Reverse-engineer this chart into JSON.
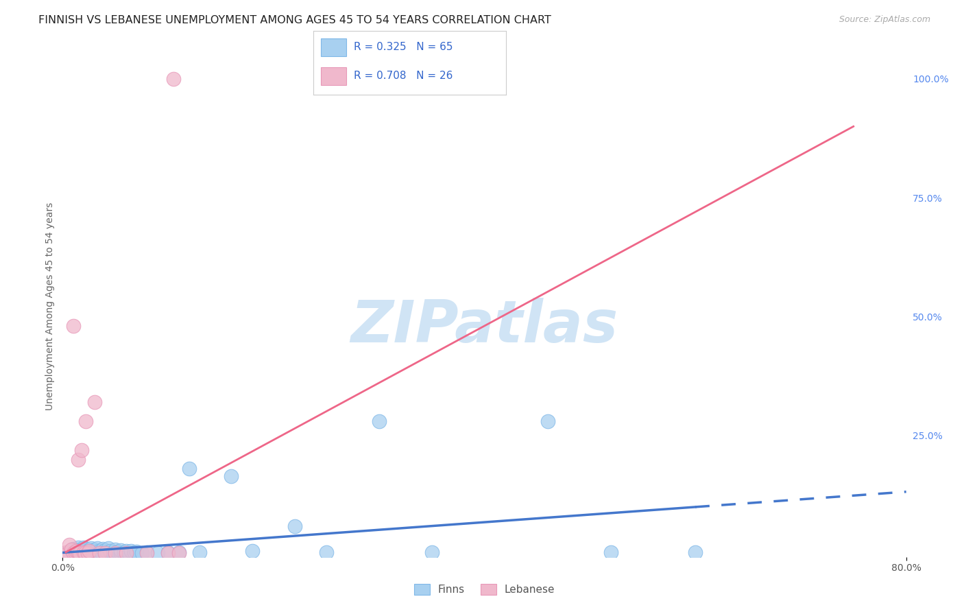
{
  "title": "FINNISH VS LEBANESE UNEMPLOYMENT AMONG AGES 45 TO 54 YEARS CORRELATION CHART",
  "source": "Source: ZipAtlas.com",
  "ylabel": "Unemployment Among Ages 45 to 54 years",
  "xlim": [
    0.0,
    0.8
  ],
  "ylim": [
    -0.005,
    1.05
  ],
  "x_tick_labels": [
    "0.0%",
    "80.0%"
  ],
  "y_ticks_right": [
    0.0,
    0.25,
    0.5,
    0.75,
    1.0
  ],
  "y_tick_labels_right": [
    "",
    "25.0%",
    "50.0%",
    "75.0%",
    "100.0%"
  ],
  "finns_R": 0.325,
  "finns_N": 65,
  "lebanese_R": 0.708,
  "lebanese_N": 26,
  "finns_color": "#a8d0f0",
  "finns_edge_color": "#80b8e8",
  "lebanese_color": "#f0b8cc",
  "lebanese_edge_color": "#e898b8",
  "finns_line_color": "#4477cc",
  "lebanese_line_color": "#ee6688",
  "background_color": "#ffffff",
  "watermark": "ZIPatlas",
  "watermark_color": "#d0e4f5",
  "grid_color": "#e0e0e0",
  "title_fontsize": 11.5,
  "axis_label_fontsize": 10,
  "tick_fontsize": 10,
  "finns_scatter_x": [
    0.005,
    0.008,
    0.01,
    0.01,
    0.012,
    0.013,
    0.014,
    0.015,
    0.015,
    0.016,
    0.018,
    0.018,
    0.02,
    0.02,
    0.02,
    0.022,
    0.022,
    0.024,
    0.025,
    0.025,
    0.026,
    0.027,
    0.028,
    0.03,
    0.03,
    0.032,
    0.033,
    0.035,
    0.035,
    0.037,
    0.038,
    0.04,
    0.04,
    0.042,
    0.043,
    0.045,
    0.045,
    0.048,
    0.05,
    0.05,
    0.052,
    0.055,
    0.055,
    0.058,
    0.06,
    0.063,
    0.065,
    0.068,
    0.07,
    0.075,
    0.08,
    0.09,
    0.1,
    0.11,
    0.12,
    0.13,
    0.16,
    0.18,
    0.22,
    0.25,
    0.3,
    0.35,
    0.46,
    0.52,
    0.6
  ],
  "finns_scatter_y": [
    0.005,
    0.008,
    0.003,
    0.012,
    0.006,
    0.01,
    0.003,
    0.005,
    0.015,
    0.008,
    0.004,
    0.012,
    0.002,
    0.007,
    0.015,
    0.005,
    0.012,
    0.008,
    0.003,
    0.01,
    0.006,
    0.014,
    0.004,
    0.002,
    0.01,
    0.007,
    0.013,
    0.003,
    0.008,
    0.005,
    0.012,
    0.002,
    0.009,
    0.006,
    0.013,
    0.003,
    0.008,
    0.005,
    0.002,
    0.01,
    0.006,
    0.003,
    0.009,
    0.005,
    0.007,
    0.003,
    0.008,
    0.004,
    0.006,
    0.003,
    0.005,
    0.003,
    0.004,
    0.005,
    0.18,
    0.004,
    0.165,
    0.007,
    0.06,
    0.005,
    0.28,
    0.004,
    0.28,
    0.005,
    0.005
  ],
  "lebanese_scatter_x": [
    0.003,
    0.005,
    0.006,
    0.008,
    0.01,
    0.01,
    0.012,
    0.013,
    0.015,
    0.015,
    0.016,
    0.018,
    0.02,
    0.021,
    0.022,
    0.024,
    0.025,
    0.03,
    0.035,
    0.04,
    0.05,
    0.06,
    0.08,
    0.1,
    0.105,
    0.11
  ],
  "lebanese_scatter_y": [
    0.005,
    0.003,
    0.02,
    0.01,
    0.003,
    0.48,
    0.003,
    0.008,
    0.005,
    0.2,
    0.003,
    0.22,
    0.005,
    0.003,
    0.28,
    0.003,
    0.008,
    0.32,
    0.003,
    0.003,
    0.003,
    0.003,
    0.003,
    0.003,
    1.0,
    0.003
  ],
  "finns_line_x0": 0.0,
  "finns_line_y0": 0.004,
  "finns_line_x1": 0.6,
  "finns_line_y1": 0.1,
  "finns_line_dash_x0": 0.6,
  "finns_line_dash_x1": 0.8,
  "lebanese_line_x0": 0.003,
  "lebanese_line_y0": 0.005,
  "lebanese_line_x1": 0.75,
  "lebanese_line_y1": 0.9
}
